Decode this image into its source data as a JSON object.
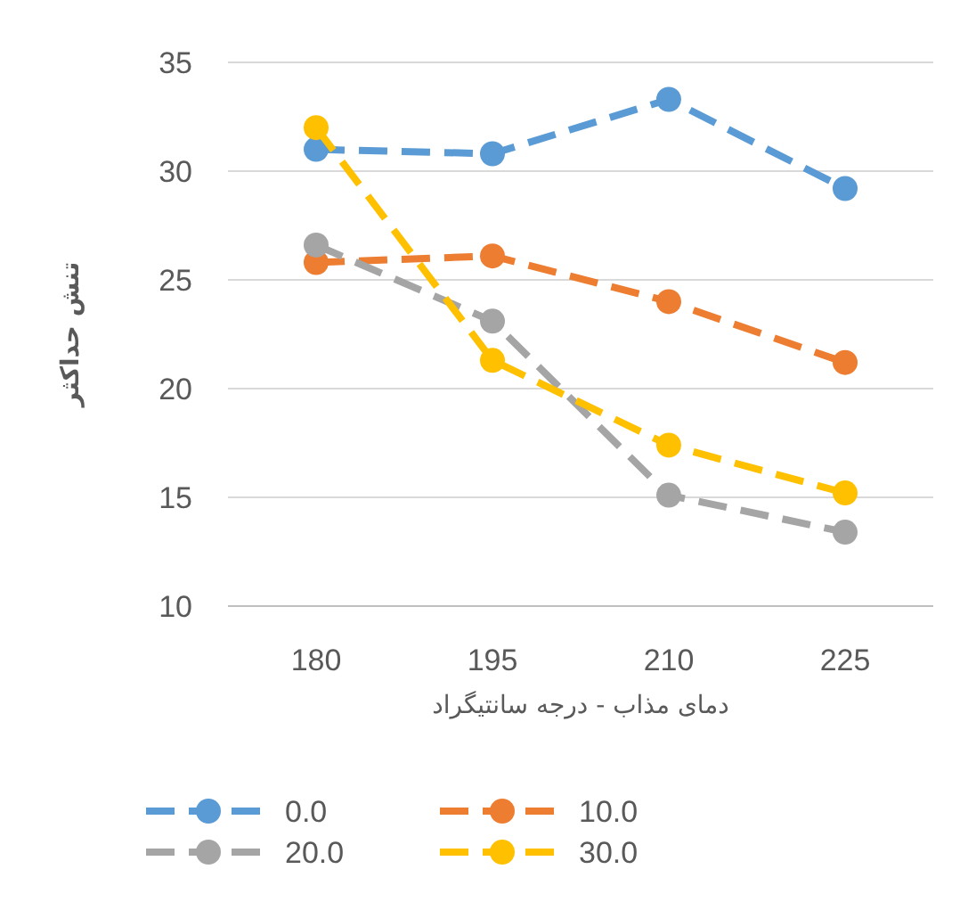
{
  "chart_data": {
    "type": "line",
    "xlabel": "دمای مذاب - درجه سانتیگراد",
    "ylabel": "تنش حداکثر",
    "categories": [
      "180",
      "195",
      "210",
      "225"
    ],
    "series": [
      {
        "name": "0.0",
        "color": "#5b9bd5",
        "values": [
          31.0,
          30.8,
          33.3,
          29.2
        ]
      },
      {
        "name": "10.0",
        "color": "#ed7d31",
        "values": [
          25.8,
          26.1,
          24.0,
          21.2
        ]
      },
      {
        "name": "20.0",
        "color": "#a5a5a5",
        "values": [
          26.6,
          23.1,
          15.1,
          13.4
        ]
      },
      {
        "name": "30.0",
        "color": "#ffc000",
        "values": [
          32.0,
          21.3,
          17.4,
          15.2
        ]
      }
    ],
    "ylim": [
      10,
      35
    ],
    "yticks": [
      10,
      15,
      20,
      25,
      30,
      35
    ],
    "grid": "y",
    "legend": "bottom",
    "marker": "circle",
    "line_style": "dashed"
  }
}
